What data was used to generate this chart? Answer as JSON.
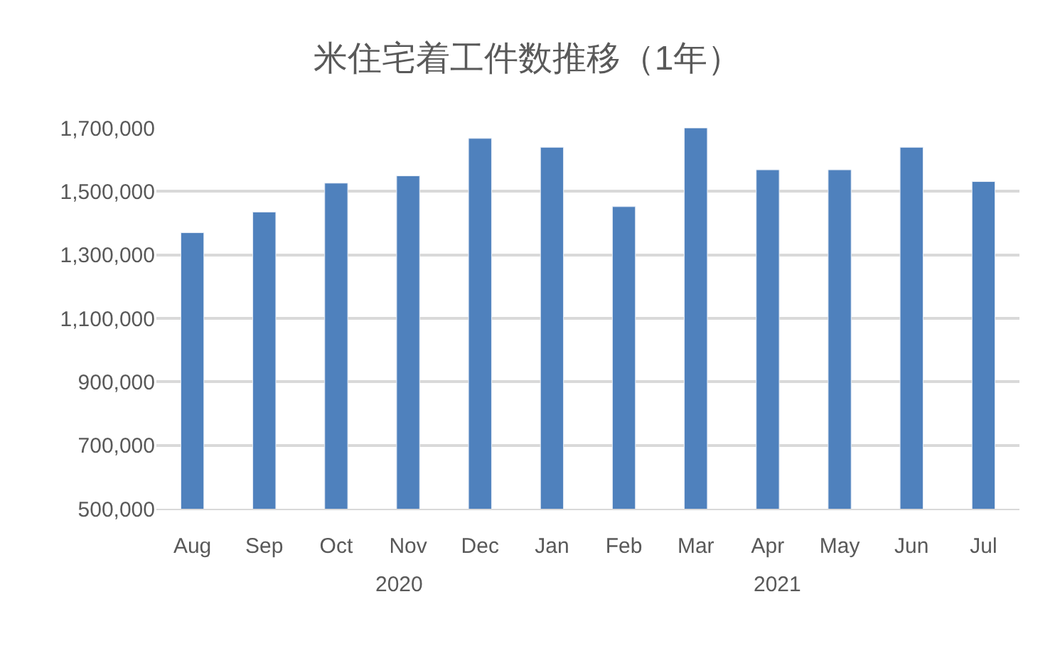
{
  "chart_data": {
    "type": "bar",
    "title": "米住宅着工件数推移（1年）",
    "categories": [
      "Aug",
      "Sep",
      "Oct",
      "Nov",
      "Dec",
      "Jan",
      "Feb",
      "Mar",
      "Apr",
      "May",
      "Jun",
      "Jul"
    ],
    "series": [
      {
        "color": "#4f81bd",
        "values": [
          1370000,
          1435000,
          1526000,
          1549000,
          1667000,
          1639000,
          1452000,
          1700000,
          1568000,
          1568000,
          1639000,
          1531000
        ]
      }
    ],
    "ylim": [
      500000,
      1700000
    ],
    "yticks": [
      {
        "value": 500000,
        "label": "500,000"
      },
      {
        "value": 700000,
        "label": "700,000"
      },
      {
        "value": 900000,
        "label": "900,000"
      },
      {
        "value": 1100000,
        "label": "1,100,000"
      },
      {
        "value": 1300000,
        "label": "1,300,000"
      },
      {
        "value": 1500000,
        "label": "1,500,000"
      },
      {
        "value": 1700000,
        "label": "1,700,000"
      }
    ],
    "grid": "y",
    "annotations": [
      "2020",
      "2021"
    ]
  }
}
